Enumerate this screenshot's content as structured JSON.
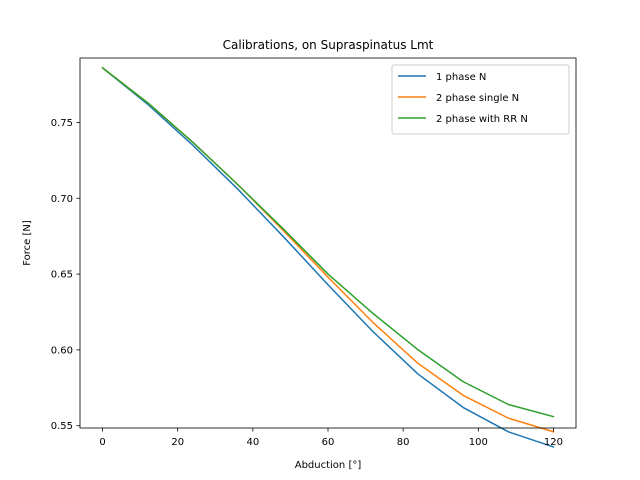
{
  "chart_data": {
    "type": "line",
    "title": "Calibrations, on Supraspinatus Lmt",
    "xlabel": "Abduction [°]",
    "ylabel": "Force [N]",
    "xlim": [
      -6,
      126
    ],
    "ylim": [
      0.5485,
      0.7925
    ],
    "xticks": [
      0,
      20,
      40,
      60,
      80,
      100,
      120
    ],
    "yticks": [
      0.55,
      0.6,
      0.65,
      0.7,
      0.75
    ],
    "grid": false,
    "legend_position": "top-right",
    "x": [
      0,
      12,
      24,
      36,
      48,
      60,
      72,
      84,
      96,
      108,
      120
    ],
    "series": [
      {
        "name": "1 phase N",
        "color": "#1f77b4",
        "values": [
          0.786,
          0.762,
          0.735,
          0.706,
          0.675,
          0.643,
          0.612,
          0.584,
          0.562,
          0.546,
          0.536
        ]
      },
      {
        "name": "2 phase single N",
        "color": "#ff7f0e",
        "values": [
          0.786,
          0.763,
          0.737,
          0.709,
          0.679,
          0.648,
          0.618,
          0.591,
          0.57,
          0.555,
          0.546
        ]
      },
      {
        "name": "2 phase with RR N",
        "color": "#2ca02c",
        "values": [
          0.786,
          0.763,
          0.737,
          0.709,
          0.68,
          0.65,
          0.624,
          0.6,
          0.579,
          0.564,
          0.556
        ]
      }
    ]
  }
}
